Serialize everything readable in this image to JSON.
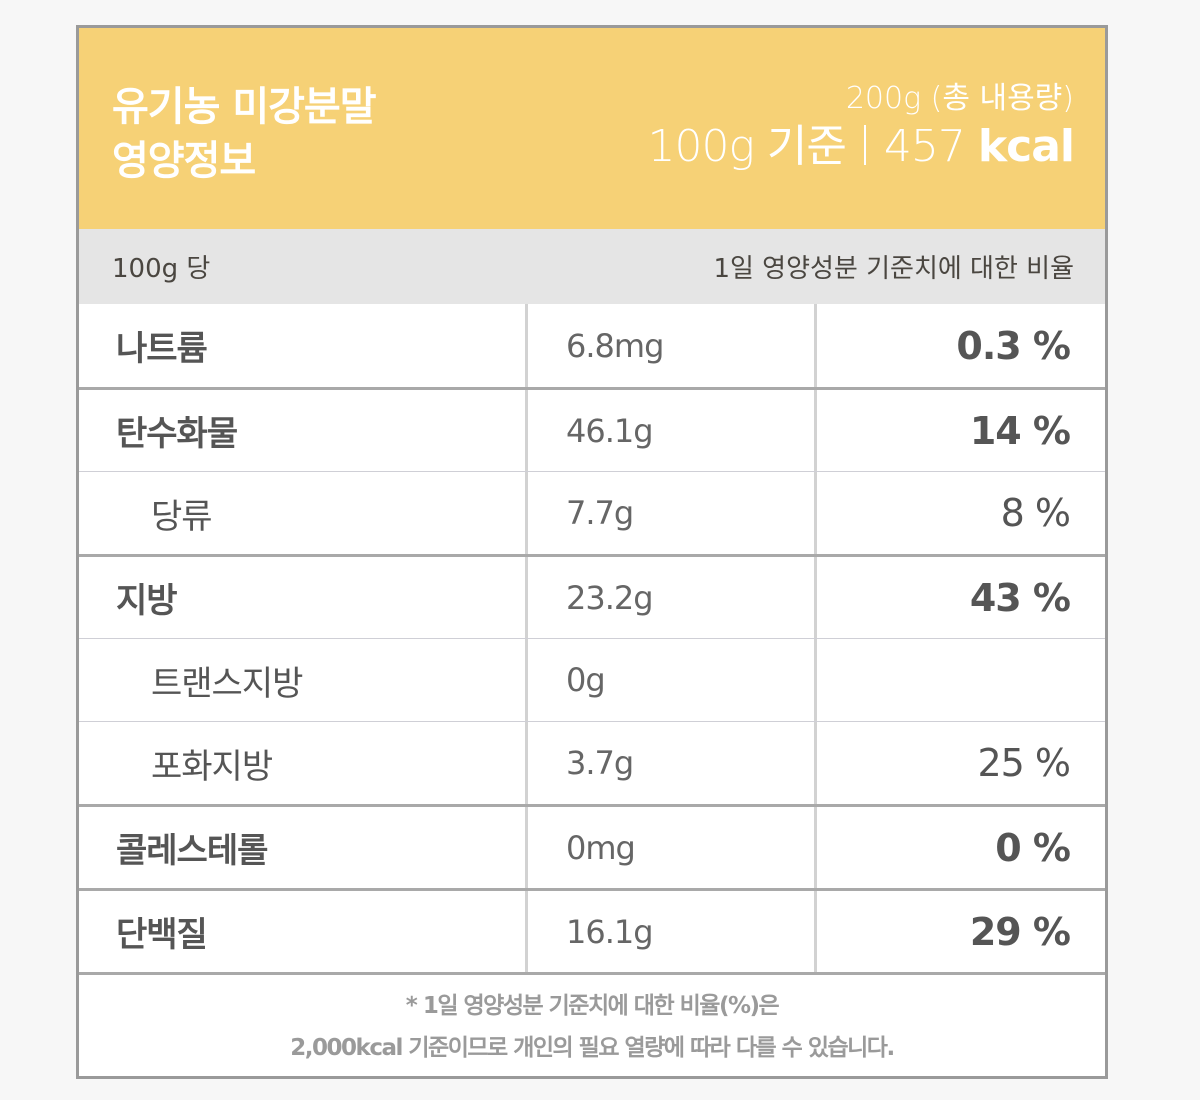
{
  "header": {
    "product_name": "유기농 미강분말",
    "title_suffix": "영양정보",
    "total_content": "200g (총 내용량)",
    "basis": "100g 기준",
    "calories_value": "457",
    "calories_unit": "kcal",
    "background_color": "#f6d176"
  },
  "subheader": {
    "per_label": "100g 당",
    "daily_value_label": "1일 영양성분 기준치에 대한 비율"
  },
  "nutrients": [
    {
      "name": "나트륨",
      "amount": "6.8mg",
      "percent": "0.3 %",
      "sub": false
    },
    {
      "name": "탄수화물",
      "amount": "46.1g",
      "percent": "14 %",
      "sub": false
    },
    {
      "name": "당류",
      "amount": "7.7g",
      "percent": "8 %",
      "sub": true
    },
    {
      "name": "지방",
      "amount": "23.2g",
      "percent": "43 %",
      "sub": false
    },
    {
      "name": "트랜스지방",
      "amount": "0g",
      "percent": "",
      "sub": true
    },
    {
      "name": "포화지방",
      "amount": "3.7g",
      "percent": "25 %",
      "sub": true
    },
    {
      "name": "콜레스테롤",
      "amount": "0mg",
      "percent": "0 %",
      "sub": false
    },
    {
      "name": "단백질",
      "amount": "16.1g",
      "percent": "29 %",
      "sub": false
    }
  ],
  "footnote": {
    "line1": "* 1일 영양성분 기준치에 대한 비율(%)은",
    "line2": "2,000kcal 기준이므로 개인의 필요 열량에 따라 다를 수 있습니다."
  }
}
